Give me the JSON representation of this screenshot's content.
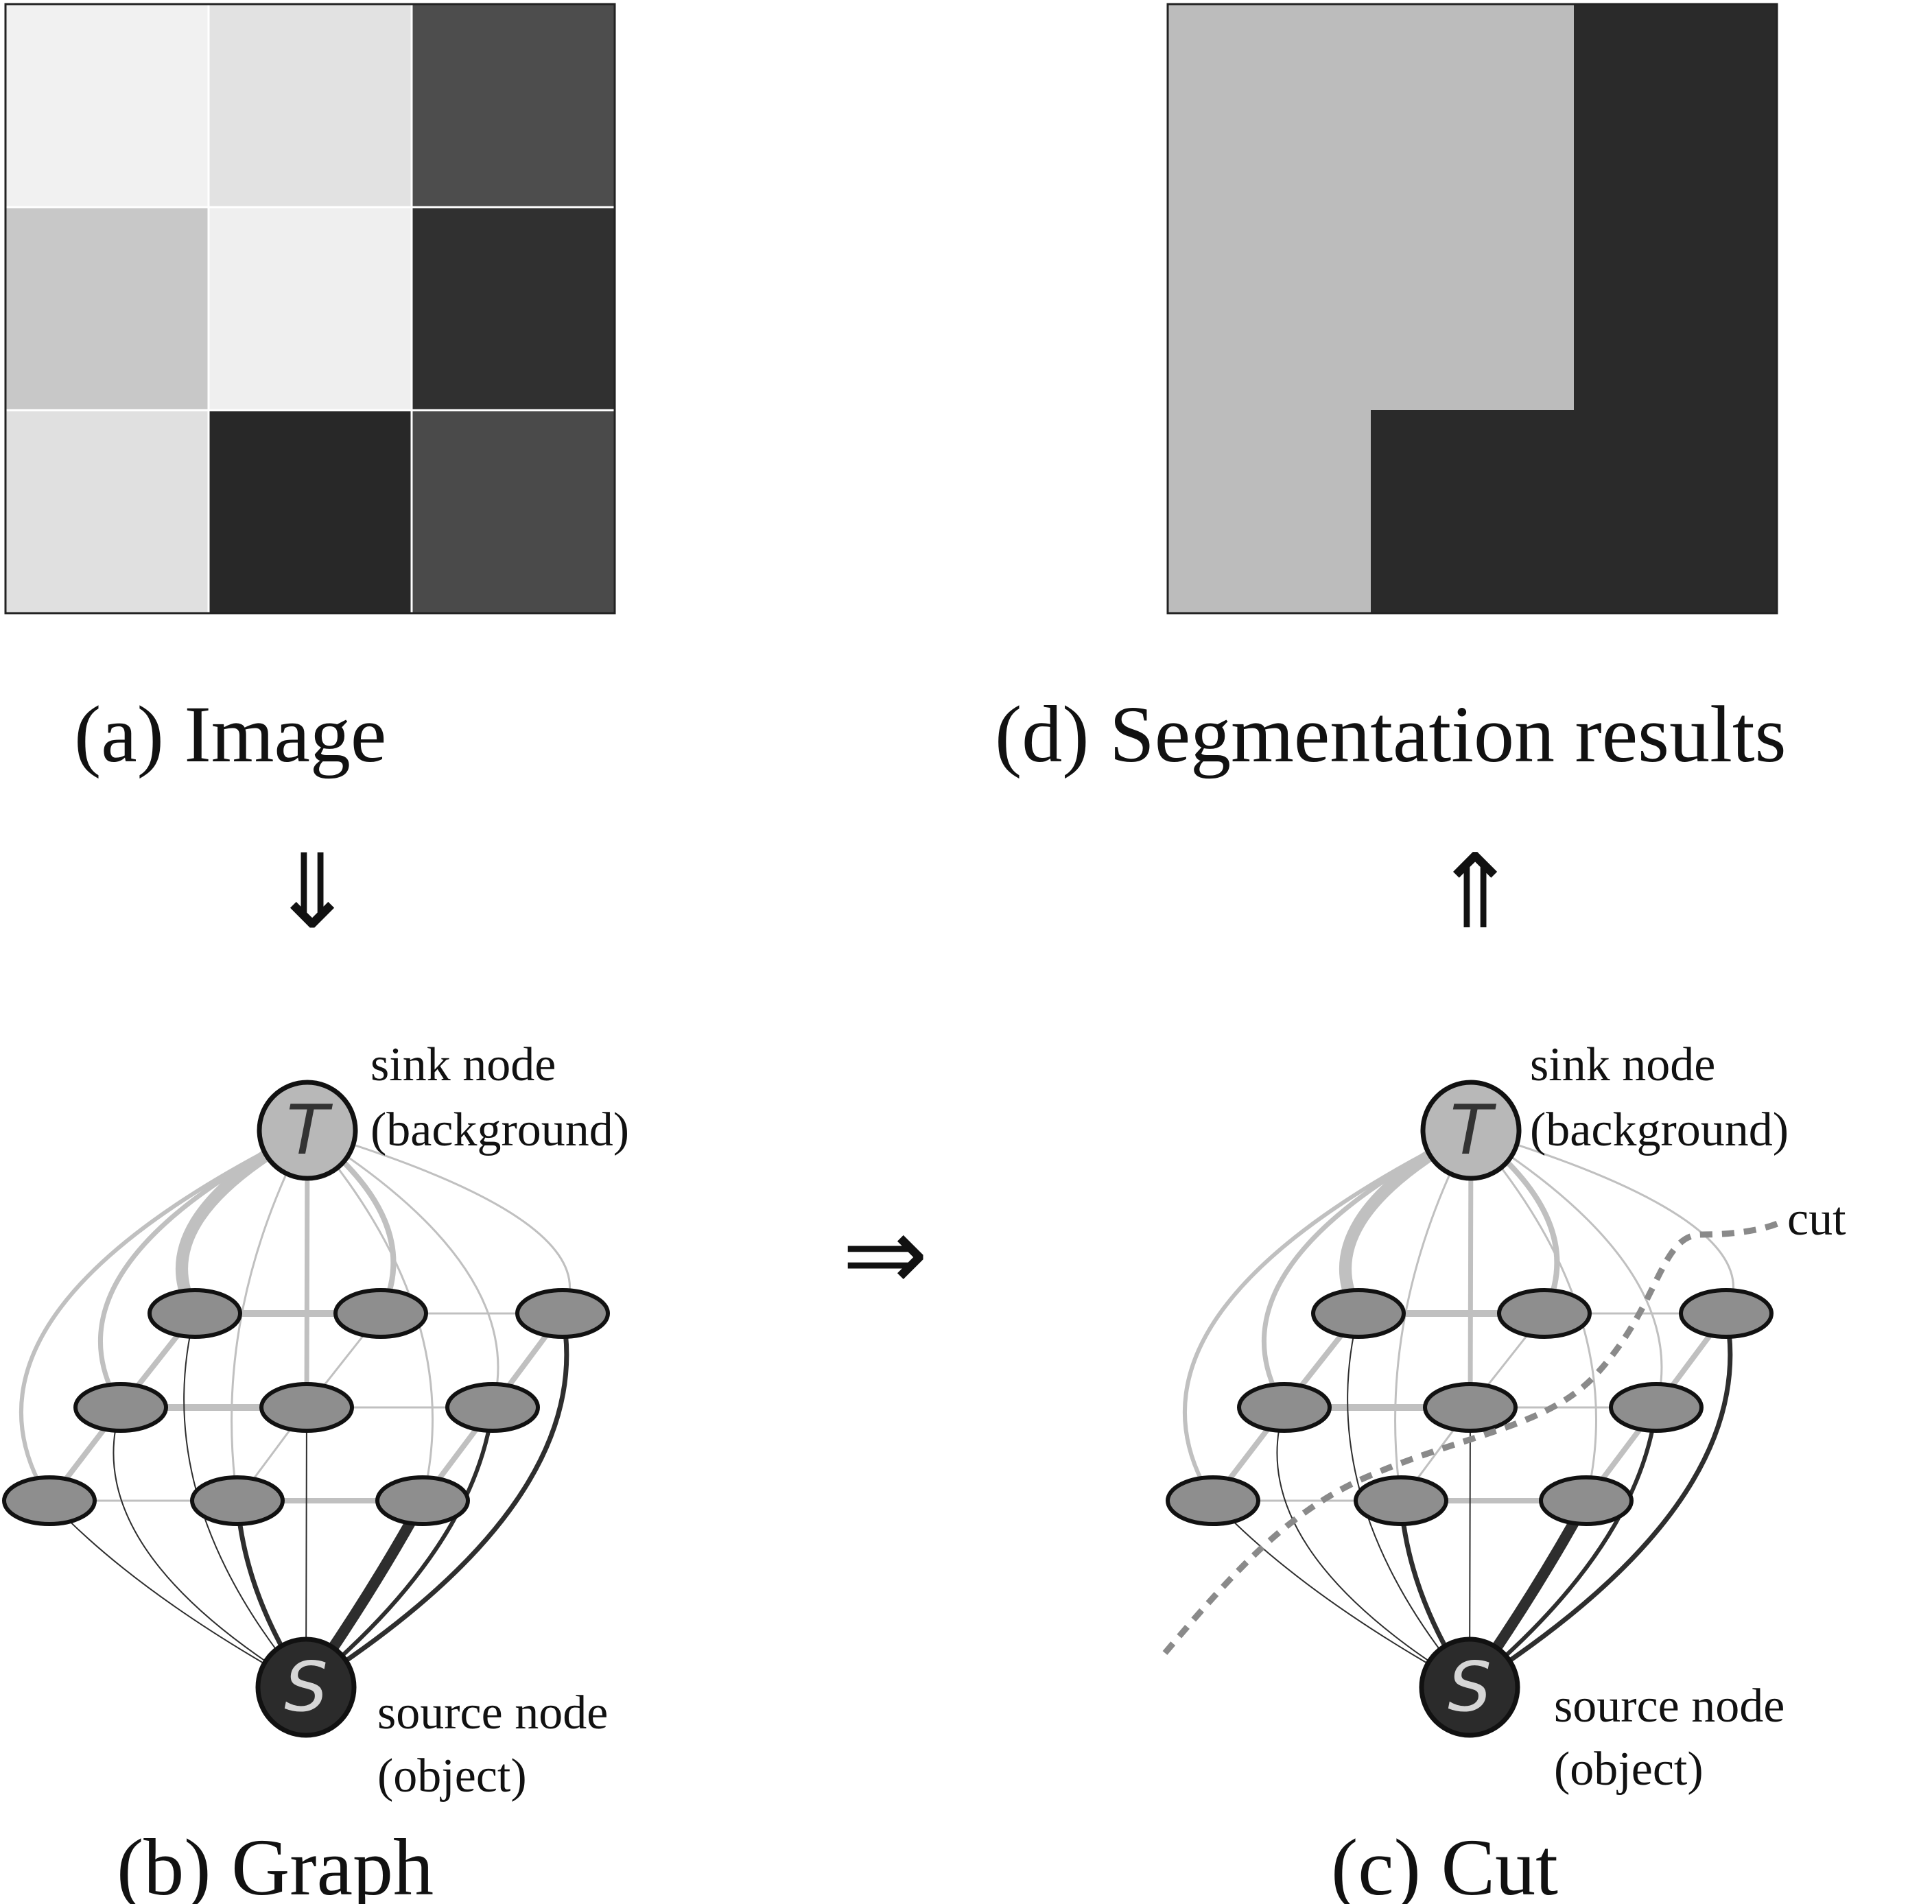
{
  "panels": {
    "image": {
      "caption": "(a) Image",
      "pixel_colors": [
        [
          "#f1f1f1",
          "#e2e2e2",
          "#4d4d4d"
        ],
        [
          "#c8c8c8",
          "#efefef",
          "#303030"
        ],
        [
          "#e0e0e0",
          "#282828",
          "#4a4a4a"
        ]
      ]
    },
    "segmentation": {
      "caption": "(d) Segmentation results",
      "background_color": "#bcbcbc",
      "object_color": "#2a2a2a"
    },
    "graph": {
      "caption": "(b) Graph",
      "sink_letter": "T",
      "source_letter": "S",
      "sink_label_line1": "sink node",
      "sink_label_line2": "(background)",
      "source_label_line1": "source node",
      "source_label_line2": "(object)"
    },
    "cut": {
      "caption": "(c) Cut",
      "sink_letter": "T",
      "source_letter": "S",
      "sink_label_line1": "sink node",
      "sink_label_line2": "(background)",
      "source_label_line1": "source node",
      "source_label_line2": "(object)",
      "cut_label": "cut"
    }
  },
  "arrows": {
    "down": "⇓",
    "right": "⇒",
    "up": "⇑"
  },
  "colors": {
    "pixel_node": "#8e8e8e",
    "sink_node": "#b8b8b8",
    "source_node": "#2b2b2b",
    "light_edge": "#c0c0c0",
    "dark_edge": "#2e2e2e",
    "cut_line": "#8a8a8a"
  }
}
